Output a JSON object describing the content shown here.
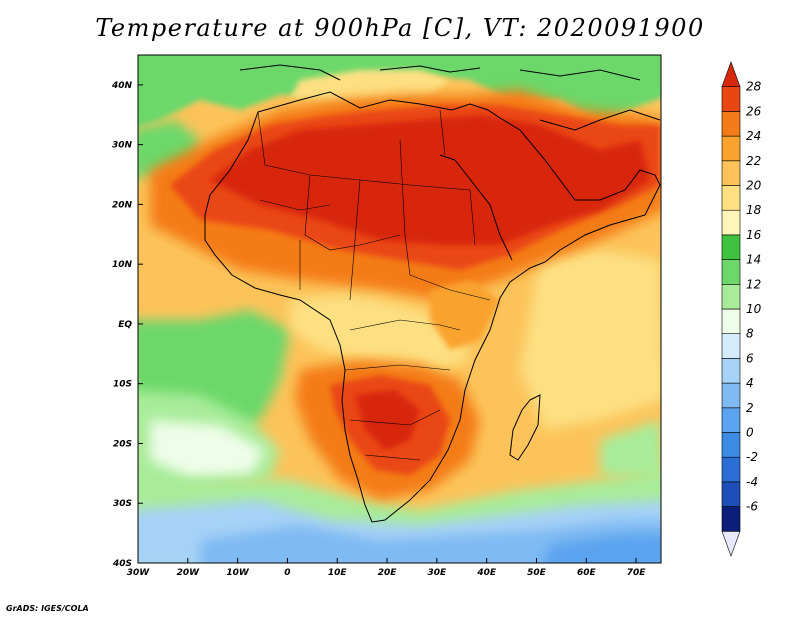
{
  "title": "Temperature at 900hPa [C], VT: 2020091900",
  "credit": "GrADS: IGES/COLA",
  "map": {
    "lon_range": [
      -30,
      75
    ],
    "lat_range": [
      -40,
      45
    ],
    "lon_ticks": [
      {
        "value": -30,
        "label": "30W"
      },
      {
        "value": -20,
        "label": "20W"
      },
      {
        "value": -10,
        "label": "10W"
      },
      {
        "value": 0,
        "label": "0"
      },
      {
        "value": 10,
        "label": "10E"
      },
      {
        "value": 20,
        "label": "20E"
      },
      {
        "value": 30,
        "label": "30E"
      },
      {
        "value": 40,
        "label": "40E"
      },
      {
        "value": 50,
        "label": "50E"
      },
      {
        "value": 60,
        "label": "60E"
      },
      {
        "value": 70,
        "label": "70E"
      }
    ],
    "lat_ticks": [
      {
        "value": 40,
        "label": "40N"
      },
      {
        "value": 30,
        "label": "30N"
      },
      {
        "value": 20,
        "label": "20N"
      },
      {
        "value": 10,
        "label": "10N"
      },
      {
        "value": 0,
        "label": "EQ"
      },
      {
        "value": -10,
        "label": "10S"
      },
      {
        "value": -20,
        "label": "20S"
      },
      {
        "value": -30,
        "label": "30S"
      },
      {
        "value": -40,
        "label": "40S"
      }
    ]
  },
  "colorbar": {
    "unit": "C",
    "labels": [
      "28",
      "26",
      "24",
      "22",
      "20",
      "18",
      "16",
      "14",
      "12",
      "10",
      "8",
      "6",
      "4",
      "2",
      "0",
      "-2",
      "-4",
      "-6"
    ],
    "bins": [
      {
        "color": "#e8e8ff"
      },
      {
        "color": "#0a1e7a"
      },
      {
        "color": "#1e4fb8"
      },
      {
        "color": "#2a6ed6"
      },
      {
        "color": "#3c8ce6"
      },
      {
        "color": "#5aa3ef"
      },
      {
        "color": "#7fbaf3"
      },
      {
        "color": "#a6d2f7"
      },
      {
        "color": "#d4ecfb"
      },
      {
        "color": "#eefde8"
      },
      {
        "color": "#a8ec9a"
      },
      {
        "color": "#6cd86a"
      },
      {
        "color": "#3fc23e"
      },
      {
        "color": "#fff5b8"
      },
      {
        "color": "#fde082"
      },
      {
        "color": "#fcc35a"
      },
      {
        "color": "#f9a32e"
      },
      {
        "color": "#f47c18"
      },
      {
        "color": "#ea4612"
      },
      {
        "color": "#d8280c"
      }
    ]
  },
  "regions": {
    "ocean_south_cold": {
      "color": "#7fbaf3"
    },
    "ocean_south_cool": {
      "color": "#a6d2f7"
    },
    "ocean_south_mild": {
      "color": "#a8ec9a"
    },
    "atlantic_green": {
      "color": "#6cd86a"
    },
    "indian_ocean_warm": {
      "color": "#fcc35a"
    },
    "sahara_hot": {
      "color": "#d8280c"
    },
    "southern_africa_hot": {
      "color": "#ea4612"
    }
  }
}
